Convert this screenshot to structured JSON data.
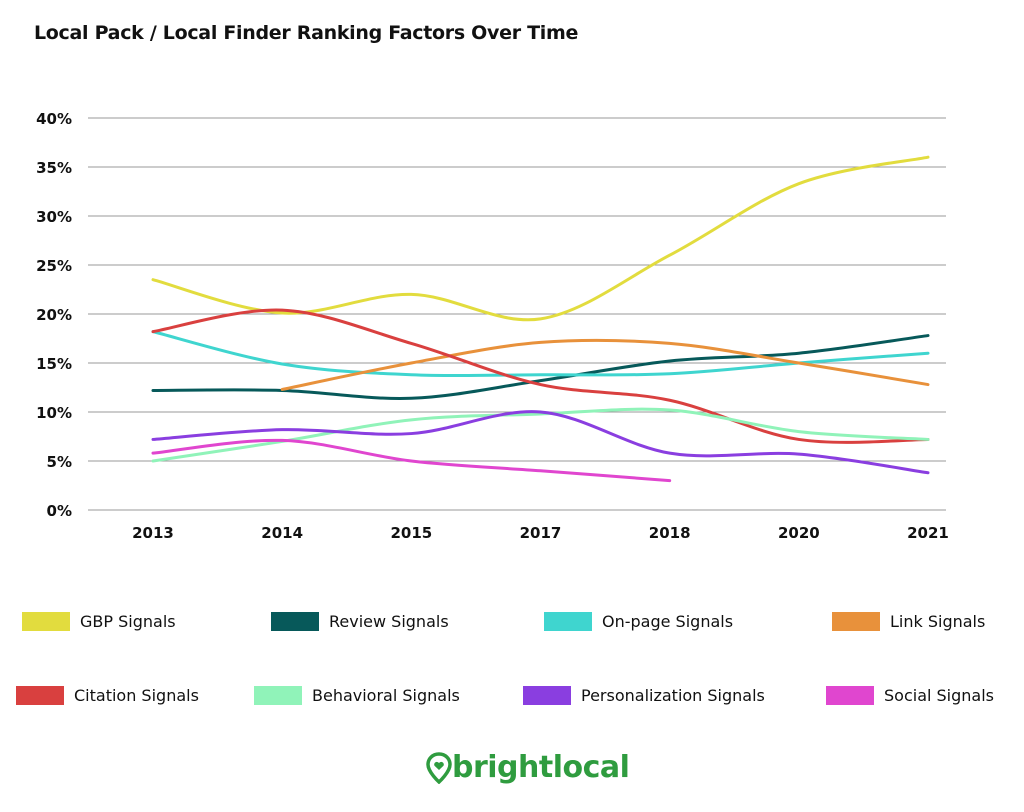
{
  "title": "Local Pack / Local Finder Ranking Factors Over Time",
  "chart_data": {
    "type": "line",
    "title": "Local Pack / Local Finder Ranking Factors Over Time",
    "categories": [
      "2013",
      "2014",
      "2015",
      "2017",
      "2018",
      "2020",
      "2021"
    ],
    "ylim": [
      0,
      40
    ],
    "yticks": [
      "0%",
      "5%",
      "10%",
      "15%",
      "20%",
      "25%",
      "30%",
      "35%",
      "40%"
    ],
    "grid": true,
    "legend_position": "bottom",
    "series": [
      {
        "name": "GBP Signals",
        "color": "#e2dc3e",
        "values": [
          23.5,
          20.1,
          22,
          19.5,
          26,
          33.3,
          36
        ]
      },
      {
        "name": "Review Signals",
        "color": "#07595a",
        "values": [
          12.2,
          12.2,
          11.4,
          13.2,
          15.2,
          16,
          17.8
        ]
      },
      {
        "name": "On-page Signals",
        "color": "#3fd5cf",
        "values": [
          18.2,
          14.9,
          13.8,
          13.8,
          13.9,
          15,
          16
        ]
      },
      {
        "name": "Link Signals",
        "color": "#e8913b",
        "values": [
          null,
          12.3,
          15,
          17.1,
          17,
          15,
          12.8
        ]
      },
      {
        "name": "Citation Signals",
        "color": "#d9403f",
        "values": [
          18.2,
          20.4,
          17,
          12.8,
          11.2,
          7.2,
          7.2
        ]
      },
      {
        "name": "Behavioral Signals",
        "color": "#90f3b9",
        "values": [
          5,
          7,
          9.2,
          9.8,
          10.2,
          8,
          7.2
        ]
      },
      {
        "name": "Personalization Signals",
        "color": "#8a3ee0",
        "values": [
          7.2,
          8.2,
          7.8,
          10,
          5.8,
          5.7,
          3.8
        ]
      },
      {
        "name": "Social Signals",
        "color": "#e046cf",
        "values": [
          5.8,
          7.1,
          5,
          4,
          3,
          null,
          null
        ]
      }
    ]
  },
  "logo": {
    "text": "brightlocal",
    "color": "#2f9c3f"
  }
}
